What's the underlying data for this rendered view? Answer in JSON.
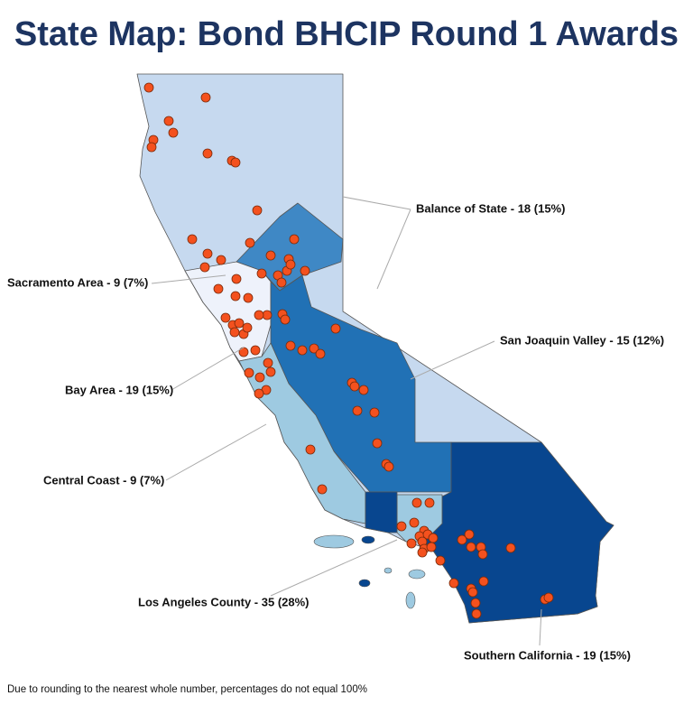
{
  "title": "State Map: Bond BHCIP Round 1 Awards",
  "regions": [
    {
      "label": "Balance of State - 18 (15%)"
    },
    {
      "label": "Sacramento Area - 9 (7%)"
    },
    {
      "label": "San Joaquin Valley - 15 (12%)"
    },
    {
      "label": "Bay Area - 19 (15%)"
    },
    {
      "label": "Central Coast - 9 (7%)"
    },
    {
      "label": "Los Angeles County - 35 (28%)"
    },
    {
      "label": "Southern California - 19 (15%)"
    }
  ],
  "footnote": "Due to rounding to the nearest whole number, percentages do not equal 100%"
}
